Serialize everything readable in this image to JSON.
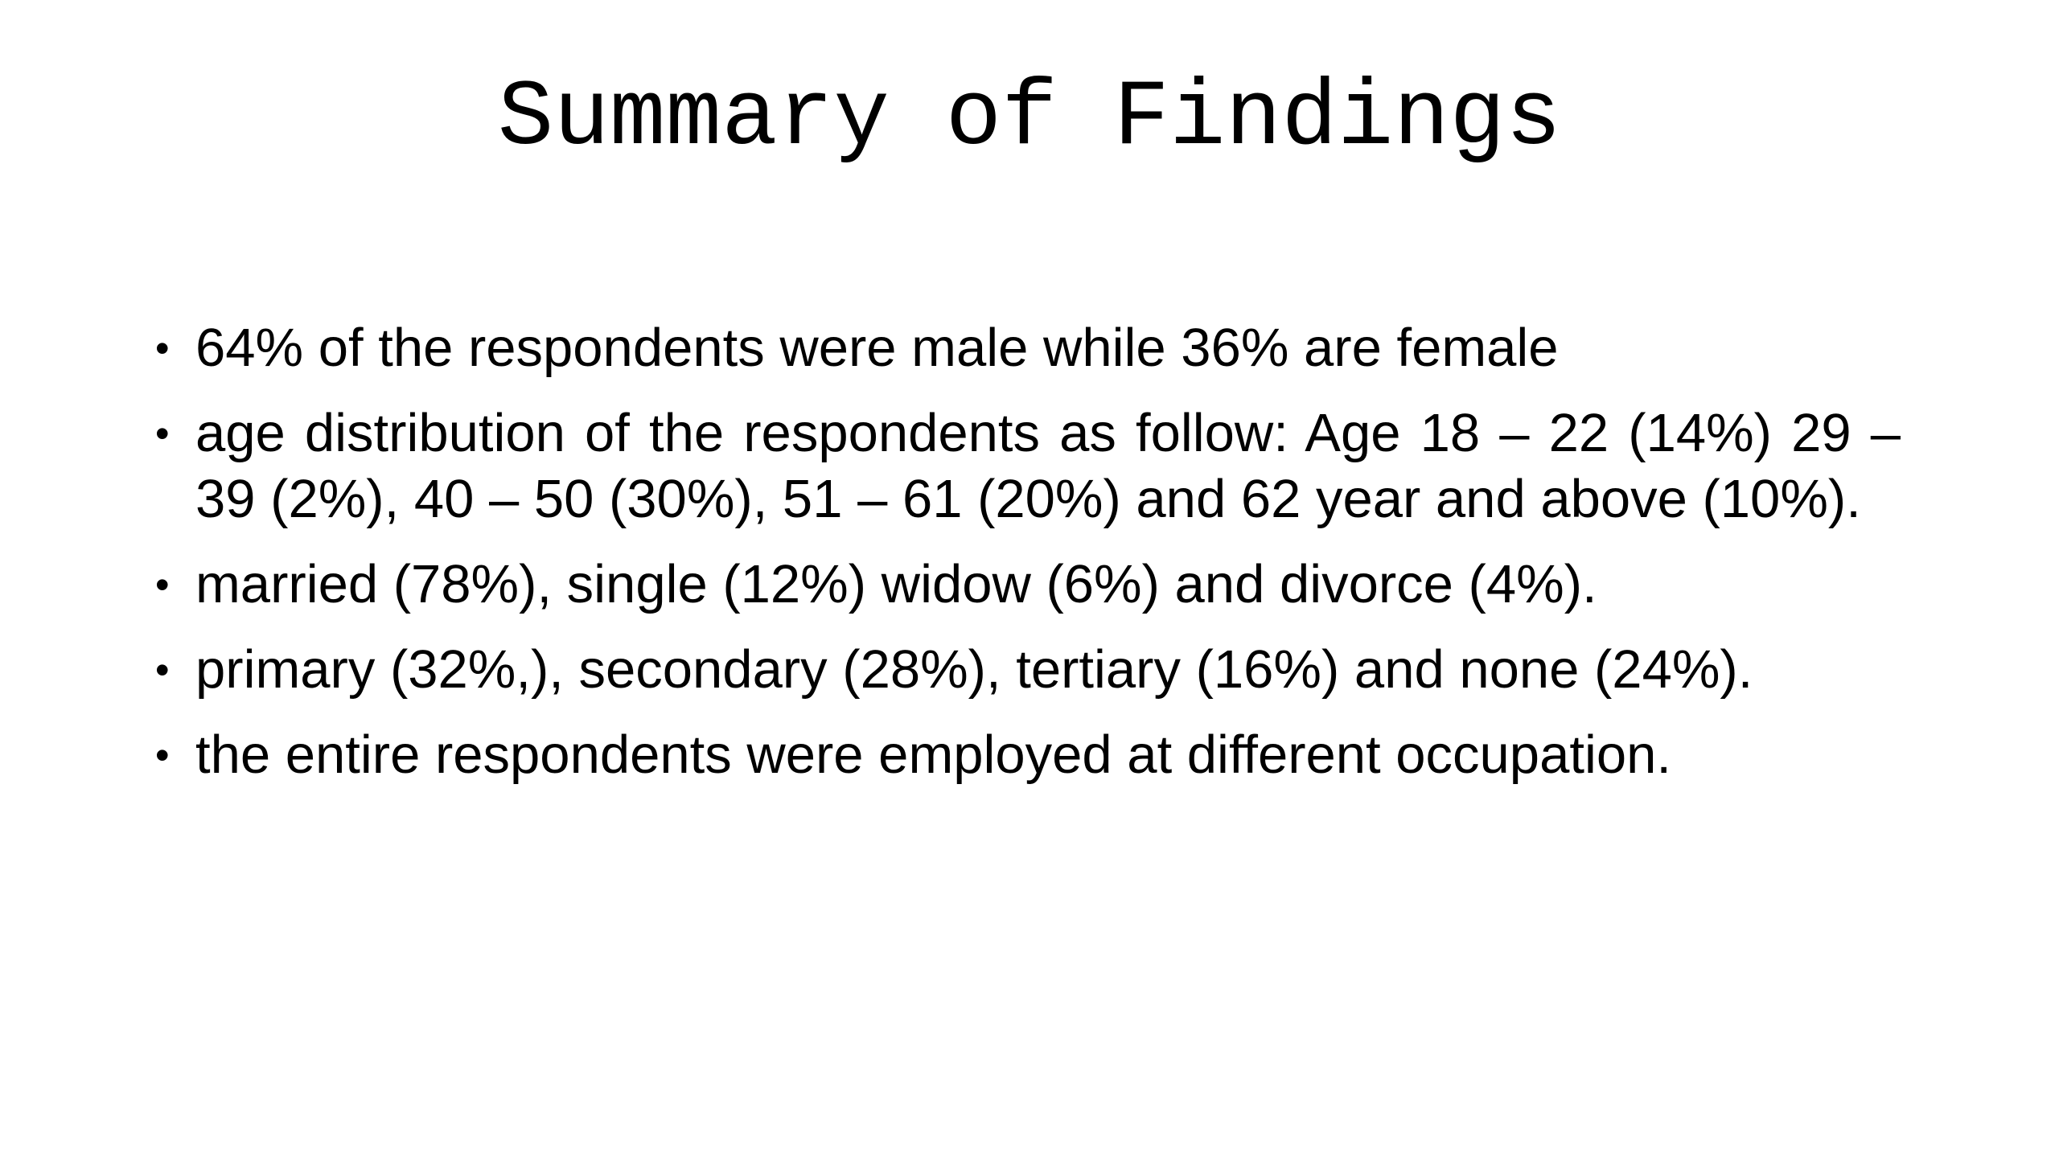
{
  "title": "Summary of Findings",
  "bullets": [
    "64% of the respondents were male while 36% are female",
    "age distribution of the respondents as follow: Age 18 – 22 (14%) 29 – 39 (2%), 40 – 50 (30%), 51 – 61 (20%) and 62 year and above (10%).",
    "married (78%), single (12%) widow (6%) and divorce (4%).",
    "primary (32%,), secondary (28%), tertiary (16%) and none (24%).",
    "the entire respondents were employed at different occupation."
  ]
}
